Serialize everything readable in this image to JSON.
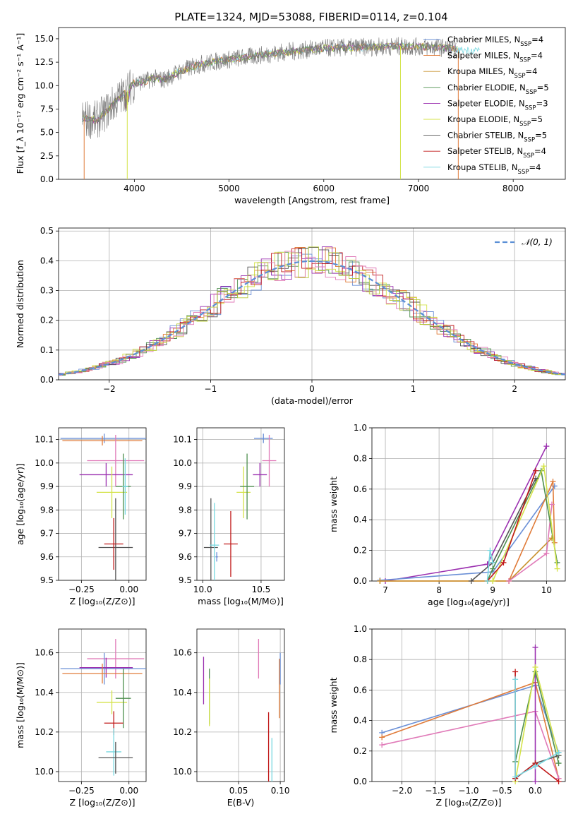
{
  "colors": {
    "Chabrier MILES": "#6a8fd6",
    "Salpeter MILES": "#e07b39",
    "Kroupa MILES": "#c8902a",
    "Chabrier ELODIE": "#4e8f4e",
    "Salpeter ELODIE": "#9b30b0",
    "Kroupa ELODIE": "#d4e34a",
    "Chabrier STELIB": "#555555",
    "Salpeter STELIB": "#c01818",
    "Kroupa STELIB": "#78d8e0",
    "Extra": "#e07ab8",
    "Extra2": "#b7c93a"
  },
  "chart_data": [
    {
      "id": "spectrum",
      "type": "line",
      "title": "PLATE=1324, MJD=53088, FIBERID=0114, z=0.104",
      "xlabel": "wavelength [Angstrom, rest frame]",
      "ylabel": "Flux [f_λ 10⁻¹⁷ erg cm⁻² s⁻¹ A⁻¹]",
      "xlim": [
        3200,
        8550
      ],
      "ylim": [
        0,
        16.2
      ],
      "xticks": [
        "4000",
        "5000",
        "6000",
        "7000",
        "8000"
      ],
      "xtick_values": [
        4000,
        5000,
        6000,
        7000,
        8000
      ],
      "yticks": [
        "0.0",
        "2.5",
        "5.0",
        "7.5",
        "10.0",
        "12.5",
        "15.0"
      ],
      "ytick_values": [
        0,
        2.5,
        5,
        7.5,
        10,
        12.5,
        15
      ],
      "observed_continuum": {
        "x": [
          3450,
          3600,
          3700,
          3800,
          3900,
          4000,
          4100,
          4200,
          4300,
          4500,
          4700,
          5000,
          5300,
          5600,
          6000,
          6400,
          6800,
          7200,
          7400
        ],
        "y": [
          6.5,
          6.3,
          7.2,
          8.3,
          9.2,
          10.3,
          10.4,
          10.8,
          10.6,
          11.6,
          12.3,
          12.8,
          13.2,
          13.6,
          14.0,
          14.1,
          14.2,
          14.1,
          13.9
        ]
      },
      "legend": [
        {
          "label": "Chabrier MILES, N",
          "sub": "SSP",
          "suffix": "=4"
        },
        {
          "label": "Salpeter MILES, N",
          "sub": "SSP",
          "suffix": "=4"
        },
        {
          "label": "Kroupa MILES, N",
          "sub": "SSP",
          "suffix": "=4"
        },
        {
          "label": "Chabrier ELODIE, N",
          "sub": "SSP",
          "suffix": "=5"
        },
        {
          "label": "Salpeter ELODIE, N",
          "sub": "SSP",
          "suffix": "=3"
        },
        {
          "label": "Kroupa ELODIE, N",
          "sub": "SSP",
          "suffix": "=5"
        },
        {
          "label": "Chabrier STELIB, N",
          "sub": "SSP",
          "suffix": "=5"
        },
        {
          "label": "Salpeter STELIB, N",
          "sub": "SSP",
          "suffix": "=4"
        },
        {
          "label": "Kroupa STELIB, N",
          "sub": "SSP",
          "suffix": "=4"
        }
      ]
    },
    {
      "id": "residuals",
      "type": "line",
      "xlabel": "(data-model)/error",
      "ylabel": "Normed distribution",
      "xlim": [
        -2.5,
        2.5
      ],
      "ylim": [
        0,
        0.51
      ],
      "xticks": [
        "−2",
        "−1",
        "0",
        "1",
        "2"
      ],
      "xtick_values": [
        -2,
        -1,
        0,
        1,
        2
      ],
      "yticks": [
        "0.0",
        "0.1",
        "0.2",
        "0.3",
        "0.4",
        "0.5"
      ],
      "ytick_values": [
        0,
        0.1,
        0.2,
        0.3,
        0.4,
        0.5
      ],
      "legend": [
        "𝒩(0, 1)"
      ],
      "gaussian": {
        "mean": 0,
        "sigma": 1
      }
    },
    {
      "id": "age_vs_Z",
      "type": "scatter",
      "xlabel": "Z [log₁₀(Z/Z⊙)]",
      "ylabel": "age  [log₁₀(age/yr)]",
      "xlim": [
        -0.37,
        0.09
      ],
      "ylim": [
        9.5,
        10.15
      ],
      "xticks": [
        "−0.25",
        "0.00"
      ],
      "xtick_values": [
        -0.25,
        0
      ],
      "yticks": [
        "9.5",
        "9.6",
        "9.7",
        "9.8",
        "9.9",
        "10.0",
        "10.1"
      ],
      "ytick_values": [
        9.5,
        9.6,
        9.7,
        9.8,
        9.9,
        10.0,
        10.1
      ],
      "points": [
        {
          "series": "Chabrier MILES",
          "x": -0.13,
          "xerr": 0.23,
          "y": 10.105,
          "yerr": 0.02
        },
        {
          "series": "Salpeter MILES",
          "x": -0.14,
          "xerr": 0.21,
          "y": 10.095,
          "yerr": 0.02
        },
        {
          "series": "Extra",
          "x": -0.07,
          "xerr": 0.15,
          "y": 10.01,
          "yerr": 0.11
        },
        {
          "series": "Salpeter ELODIE",
          "x": -0.12,
          "xerr": 0.14,
          "y": 9.95,
          "yerr": 0.05
        },
        {
          "series": "Kroupa ELODIE",
          "x": -0.09,
          "xerr": 0.08,
          "y": 9.875,
          "yerr": 0.11
        },
        {
          "series": "Chabrier ELODIE",
          "x": -0.03,
          "xerr": 0.04,
          "y": 9.9,
          "yerr": 0.14
        },
        {
          "series": "Chabrier STELIB",
          "x": -0.07,
          "xerr": 0.09,
          "y": 9.64,
          "yerr": 0.21
        },
        {
          "series": "Salpeter STELIB",
          "x": -0.08,
          "xerr": 0.05,
          "y": 9.655,
          "yerr": 0.11
        },
        {
          "series": "Kroupa STELIB",
          "x": -0.02,
          "xerr": 0.015,
          "y": 9.9,
          "yerr": 0.12
        }
      ]
    },
    {
      "id": "age_vs_mass",
      "type": "scatter",
      "xlabel": "mass [log₁₀(M/M⊙)]",
      "ylabel": "",
      "xlim": [
        9.95,
        10.7
      ],
      "ylim": [
        9.5,
        10.15
      ],
      "xticks": [
        "10.0",
        "10.5"
      ],
      "xtick_values": [
        10.0,
        10.5
      ],
      "yticks": [
        "9.5",
        "9.6",
        "9.7",
        "9.8",
        "9.9",
        "10.0",
        "10.1"
      ],
      "ytick_values": [
        9.5,
        9.6,
        9.7,
        9.8,
        9.9,
        10.0,
        10.1
      ],
      "points": [
        {
          "series": "Chabrier MILES",
          "x": 10.52,
          "xerr": 0.08,
          "y": 10.105,
          "yerr": 0.02
        },
        {
          "series": "Extra",
          "x": 10.57,
          "xerr": 0.06,
          "y": 10.01,
          "yerr": 0.11
        },
        {
          "series": "Salpeter ELODIE",
          "x": 10.49,
          "xerr": 0.06,
          "y": 9.95,
          "yerr": 0.05
        },
        {
          "series": "Kroupa ELODIE",
          "x": 10.35,
          "xerr": 0.06,
          "y": 9.875,
          "yerr": 0.11
        },
        {
          "series": "Chabrier ELODIE",
          "x": 10.38,
          "xerr": 0.06,
          "y": 9.9,
          "yerr": 0.14
        },
        {
          "series": "Chabrier STELIB",
          "x": 10.07,
          "xerr": 0.06,
          "y": 9.64,
          "yerr": 0.21
        },
        {
          "series": "Salpeter STELIB",
          "x": 10.24,
          "xerr": 0.06,
          "y": 9.655,
          "yerr": 0.14
        },
        {
          "series": "Kroupa STELIB",
          "x": 10.1,
          "xerr": 0.04,
          "y": 9.65,
          "yerr": 0.18
        },
        {
          "series": "Chabrier MILES",
          "x": 10.12,
          "xerr": 0.01,
          "y": 9.6,
          "yerr": 0.02
        }
      ]
    },
    {
      "id": "mass_weight_vs_age",
      "type": "line",
      "xlabel": "age  [log₁₀(age/yr)]",
      "ylabel": "mass weight",
      "xlim": [
        6.75,
        10.35
      ],
      "ylim": [
        0,
        1
      ],
      "xticks": [
        "7",
        "8",
        "9",
        "10"
      ],
      "xtick_values": [
        7,
        8,
        9,
        10
      ],
      "yticks": [
        "0.0",
        "0.2",
        "0.4",
        "0.6",
        "0.8",
        "1.0"
      ],
      "ytick_values": [
        0,
        0.2,
        0.4,
        0.6,
        0.8,
        1.0
      ],
      "series": [
        {
          "color": "Salpeter ELODIE",
          "x": [
            7.0,
            8.9,
            10.0
          ],
          "y": [
            0.0,
            0.11,
            0.88
          ]
        },
        {
          "color": "Chabrier MILES",
          "x": [
            6.9,
            9.0,
            10.15
          ],
          "y": [
            0.005,
            0.06,
            0.62
          ]
        },
        {
          "color": "Salpeter MILES",
          "x": [
            6.9,
            9.3,
            10.12,
            10.15
          ],
          "y": [
            0.0,
            0.0,
            0.65,
            0.25
          ]
        },
        {
          "color": "Kroupa MILES",
          "x": [
            6.9,
            9.3,
            10.1
          ],
          "y": [
            0.0,
            0.0,
            0.28
          ]
        },
        {
          "color": "Extra",
          "x": [
            9.3,
            10.0,
            10.1
          ],
          "y": [
            0.0,
            0.18,
            0.5
          ]
        },
        {
          "color": "Chabrier ELODIE",
          "x": [
            8.9,
            9.0,
            9.9,
            10.2
          ],
          "y": [
            0.0,
            0.08,
            0.72,
            0.12
          ]
        },
        {
          "color": "Kroupa ELODIE",
          "x": [
            8.9,
            9.0,
            9.95,
            10.2
          ],
          "y": [
            0.0,
            0.0,
            0.75,
            0.08
          ]
        },
        {
          "color": "Chabrier STELIB",
          "x": [
            8.6,
            9.0,
            9.8
          ],
          "y": [
            0.0,
            0.12,
            0.67
          ]
        },
        {
          "color": "Salpeter STELIB",
          "x": [
            8.9,
            9.2,
            9.8
          ],
          "y": [
            0.0,
            0.12,
            0.72
          ]
        },
        {
          "color": "Kroupa STELIB",
          "x": [
            8.9,
            8.95,
            9.0
          ],
          "y": [
            0.0,
            0.2,
            0.12
          ]
        }
      ]
    },
    {
      "id": "mass_vs_Z",
      "type": "scatter",
      "xlabel": "Z [log₁₀(Z/Z⊙)]",
      "ylabel": "mass [log₁₀(M/M⊙)]",
      "xlim": [
        -0.37,
        0.09
      ],
      "ylim": [
        9.95,
        10.72
      ],
      "xticks": [
        "−0.25",
        "0.00"
      ],
      "xtick_values": [
        -0.25,
        0
      ],
      "yticks": [
        "10.0",
        "10.2",
        "10.4",
        "10.6"
      ],
      "ytick_values": [
        10.0,
        10.2,
        10.4,
        10.6
      ],
      "points": [
        {
          "series": "Extra",
          "x": -0.07,
          "xerr": 0.15,
          "y": 10.57,
          "yerr": 0.1
        },
        {
          "series": "Chabrier MILES",
          "x": -0.13,
          "xerr": 0.23,
          "y": 10.52,
          "yerr": 0.08
        },
        {
          "series": "Salpeter ELODIE",
          "x": -0.12,
          "xerr": 0.14,
          "y": 10.525,
          "yerr": 0.05
        },
        {
          "series": "Salpeter MILES",
          "x": -0.14,
          "xerr": 0.21,
          "y": 10.495,
          "yerr": 0.05
        },
        {
          "series": "Kroupa ELODIE",
          "x": -0.09,
          "xerr": 0.08,
          "y": 10.35,
          "yerr": 0.06
        },
        {
          "series": "Chabrier ELODIE",
          "x": -0.03,
          "xerr": 0.04,
          "y": 10.37,
          "yerr": 0.15
        },
        {
          "series": "Salpeter STELIB",
          "x": -0.08,
          "xerr": 0.05,
          "y": 10.245,
          "yerr": 0.06
        },
        {
          "series": "Kroupa STELIB",
          "x": -0.08,
          "xerr": 0.04,
          "y": 10.1,
          "yerr": 0.12
        },
        {
          "series": "Chabrier STELIB",
          "x": -0.07,
          "xerr": 0.09,
          "y": 10.07,
          "yerr": 0.08
        }
      ]
    },
    {
      "id": "mass_vs_EBV",
      "type": "scatter",
      "xlabel": "E(B-V)",
      "ylabel": "",
      "xlim": [
        0.0,
        0.105
      ],
      "ylim": [
        9.95,
        10.72
      ],
      "xticks": [
        "0.05",
        "0.10"
      ],
      "xtick_values": [
        0.05,
        0.1
      ],
      "yticks": [
        "10.0",
        "10.2",
        "10.4",
        "10.6"
      ],
      "ytick_values": [
        10.0,
        10.2,
        10.4,
        10.6
      ],
      "points": [
        {
          "series": "Salpeter ELODIE",
          "x": 0.008,
          "xerr": 0,
          "y": 10.46,
          "yerr": 0.12
        },
        {
          "series": "Chabrier ELODIE",
          "x": 0.015,
          "xerr": 0,
          "y": 10.38,
          "yerr": 0.14
        },
        {
          "series": "Kroupa ELODIE",
          "x": 0.015,
          "xerr": 0,
          "y": 10.35,
          "yerr": 0.12
        },
        {
          "series": "Extra",
          "x": 0.074,
          "xerr": 0,
          "y": 10.57,
          "yerr": 0.1
        },
        {
          "series": "Salpeter STELIB",
          "x": 0.086,
          "xerr": 0,
          "y": 10.1,
          "yerr": 0.2
        },
        {
          "series": "Kroupa STELIB",
          "x": 0.09,
          "xerr": 0,
          "y": 10.05,
          "yerr": 0.12
        },
        {
          "series": "Salpeter MILES",
          "x": 0.099,
          "xerr": 0,
          "y": 10.42,
          "yerr": 0.15
        },
        {
          "series": "Chabrier MILES",
          "x": 0.1,
          "xerr": 0,
          "y": 10.52,
          "yerr": 0.08
        }
      ]
    },
    {
      "id": "mass_weight_vs_Z",
      "type": "line",
      "xlabel": "Z [log₁₀(Z/Z⊙)]",
      "ylabel": "mass weight",
      "xlim": [
        -2.45,
        0.45
      ],
      "ylim": [
        0,
        1
      ],
      "xticks": [
        "−2.0",
        "−1.5",
        "−1.0",
        "−0.5",
        "0.0"
      ],
      "xtick_values": [
        -2.0,
        -1.5,
        -1.0,
        -0.5,
        0.0
      ],
      "yticks": [
        "0.0",
        "0.2",
        "0.4",
        "0.6",
        "0.8",
        "1.0"
      ],
      "ytick_values": [
        0,
        0.2,
        0.4,
        0.6,
        0.8,
        1.0
      ],
      "series": [
        {
          "color": "Chabrier MILES",
          "x": [
            -2.3,
            0.0,
            0.35
          ],
          "y": [
            0.32,
            0.63,
            0.19
          ]
        },
        {
          "color": "Salpeter MILES",
          "x": [
            -2.3,
            0.0,
            0.35
          ],
          "y": [
            0.29,
            0.65,
            0.02
          ]
        },
        {
          "color": "Extra",
          "x": [
            -2.3,
            0.0,
            0.35
          ],
          "y": [
            0.24,
            0.46,
            0.02
          ]
        },
        {
          "color": "Salpeter ELODIE",
          "x": [
            0.0,
            0.0
          ],
          "y": [
            0.0,
            0.88
          ]
        },
        {
          "color": "Chabrier ELODIE",
          "x": [
            -0.3,
            0.0,
            0.35
          ],
          "y": [
            0.13,
            0.72,
            0.12
          ]
        },
        {
          "color": "Kroupa ELODIE",
          "x": [
            -0.3,
            0.0,
            0.35
          ],
          "y": [
            0.0,
            0.75,
            0.17
          ]
        },
        {
          "color": "Chabrier STELIB",
          "x": [
            -0.3,
            0.0,
            0.35
          ],
          "y": [
            0.02,
            0.12,
            0.17
          ]
        },
        {
          "color": "Salpeter STELIB",
          "x": [
            -0.3,
            -0.3,
            0.0,
            0.35
          ],
          "y": [
            0.72,
            0.02,
            0.12,
            0.0
          ]
        },
        {
          "color": "Kroupa STELIB",
          "x": [
            -0.3,
            -0.3,
            0.0,
            0.35
          ],
          "y": [
            0.67,
            0.03,
            0.1,
            0.19
          ]
        }
      ]
    }
  ]
}
